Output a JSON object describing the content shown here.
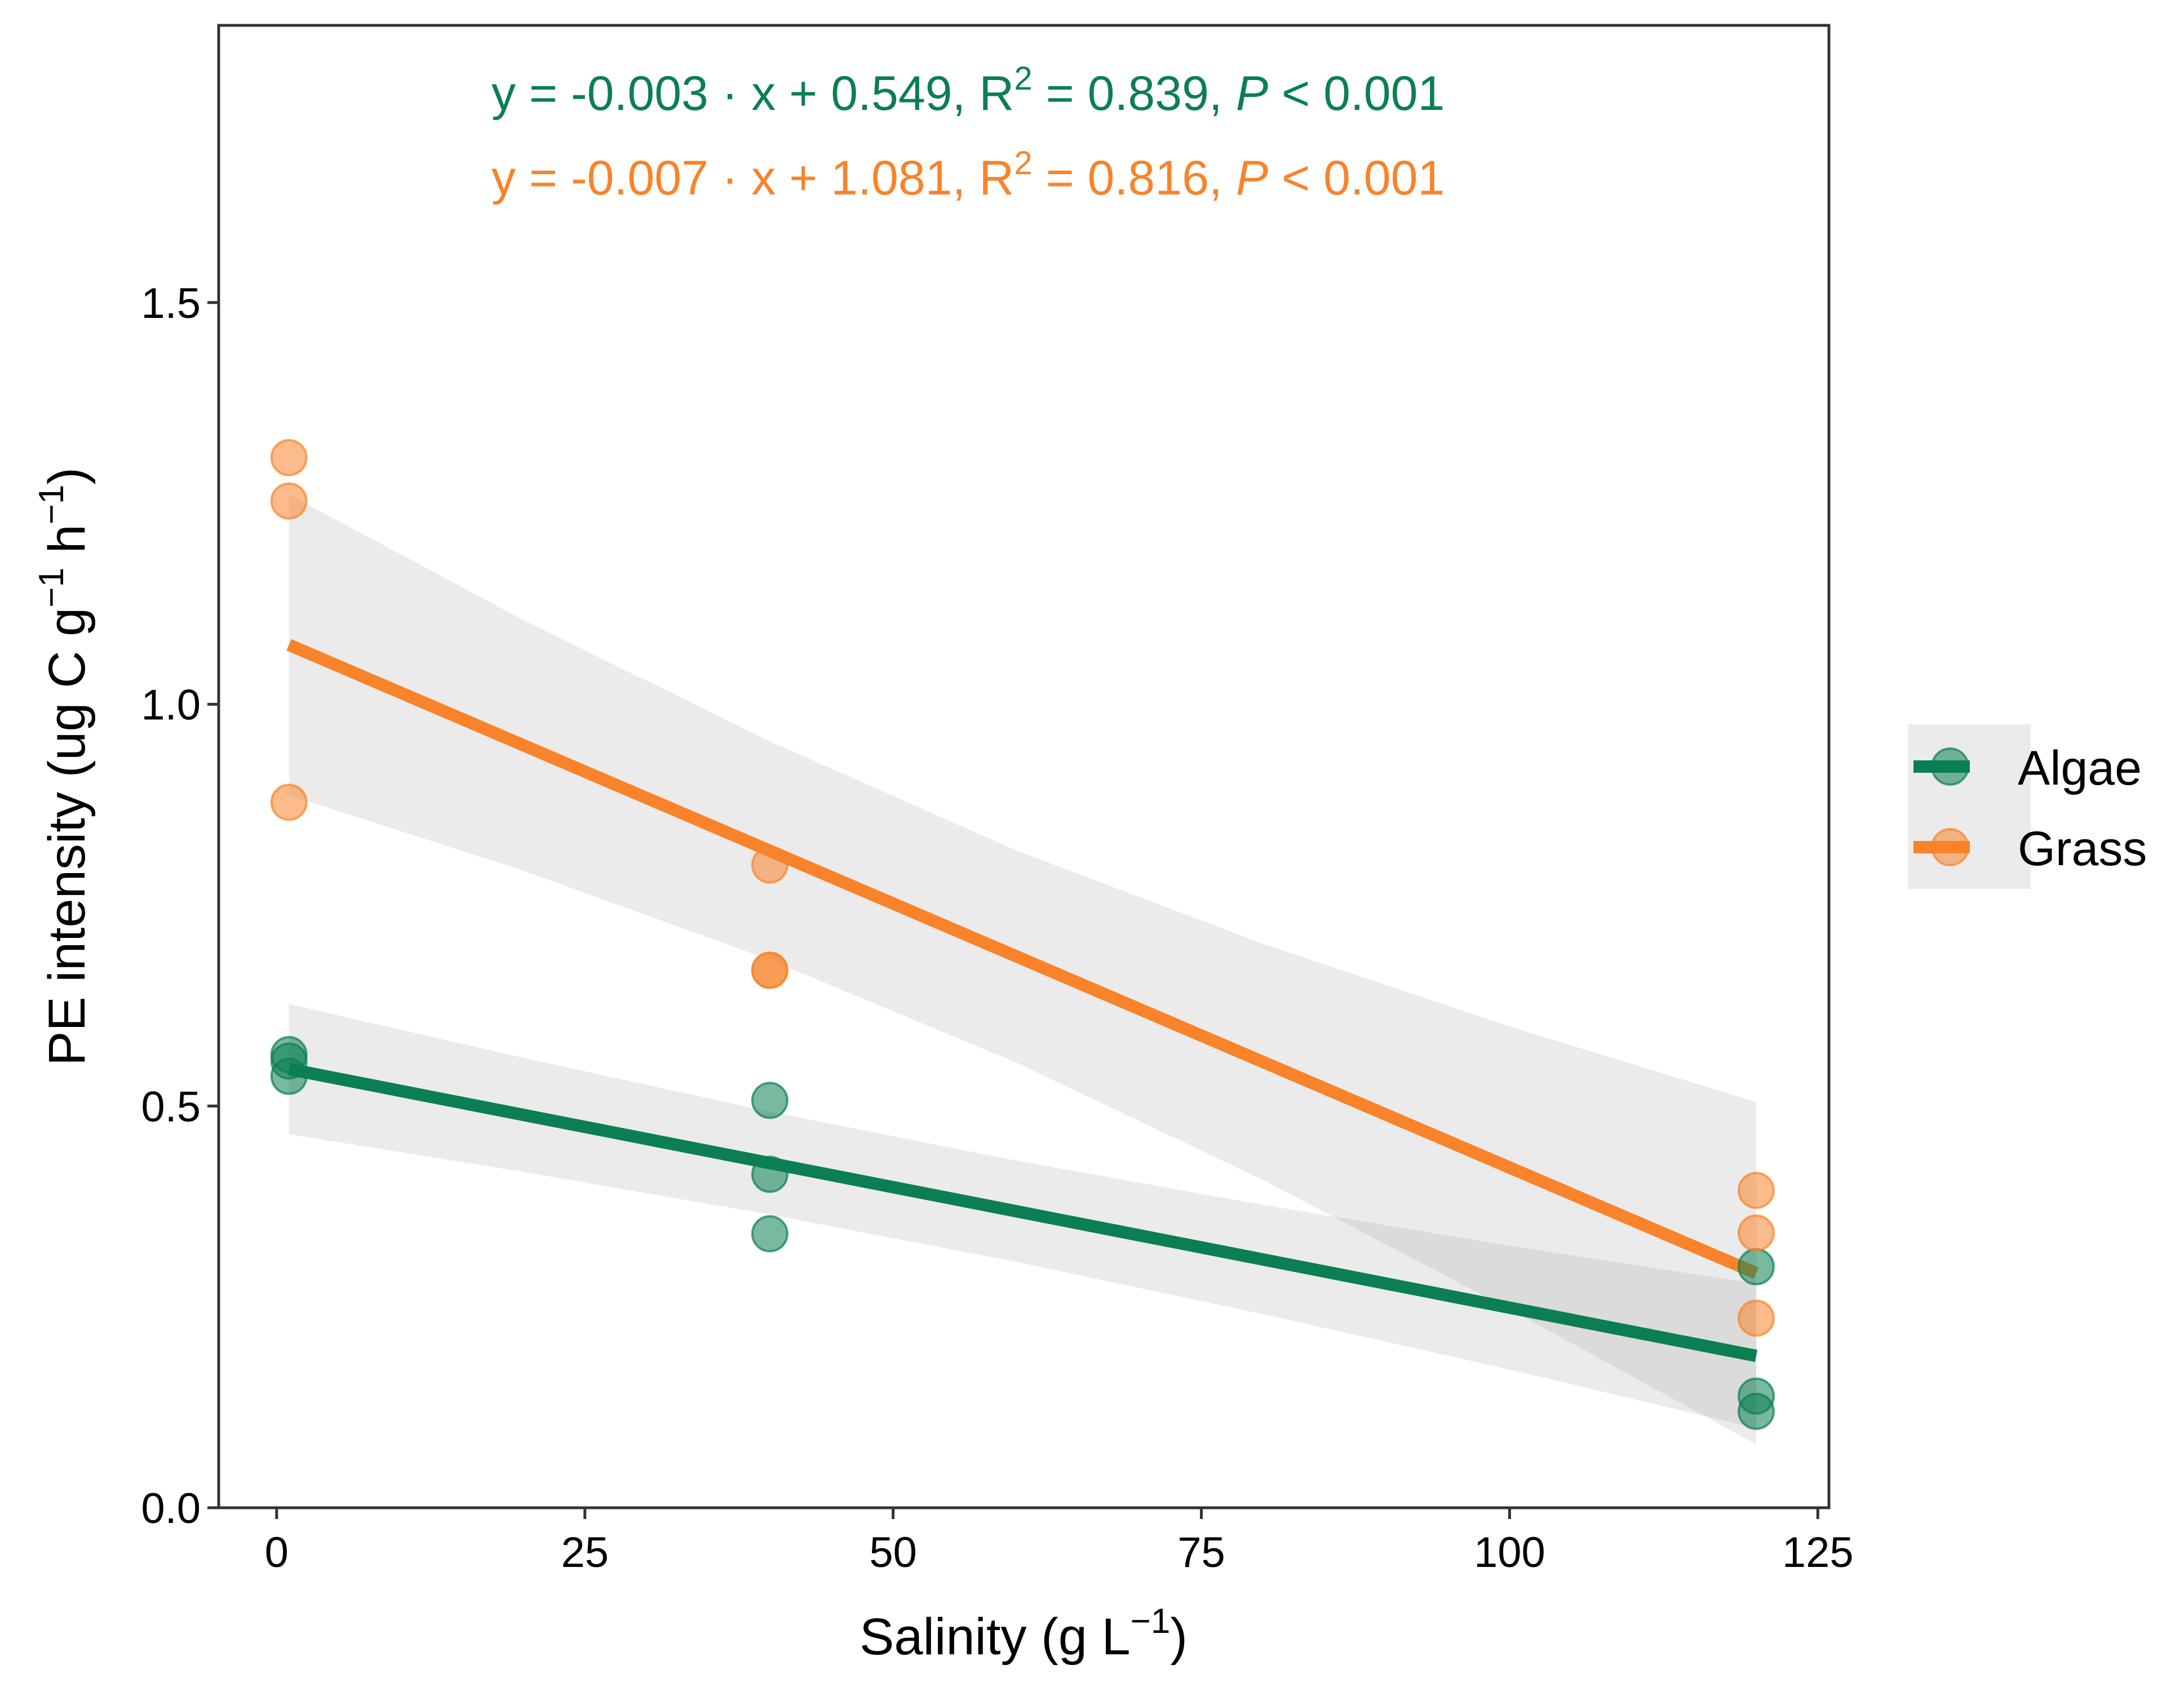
{
  "chart_data": {
    "type": "scatter",
    "xlabel": "Salinity (g L",
    "xlabel_sup": "−1",
    "xlabel_end": ")",
    "ylabel": "PE intensity (ug C g",
    "ylabel_sup1": "−1",
    "ylabel_mid": " h",
    "ylabel_sup2": "−1",
    "ylabel_end": ")",
    "xlim": [
      -4.7,
      125.9
    ],
    "ylim": [
      0,
      1.845
    ],
    "x_ticks": [
      0,
      25,
      50,
      75,
      100,
      125
    ],
    "x_tick_labels": [
      "0",
      "25",
      "50",
      "75",
      "100",
      "125"
    ],
    "y_ticks": [
      0,
      0.5,
      1.0,
      1.5
    ],
    "y_tick_labels": [
      "0.0",
      "0.5",
      "1.0",
      "1.5"
    ],
    "grid": false,
    "legend_position": "right",
    "band_x": [
      1,
      20,
      40,
      60,
      80,
      100,
      120
    ],
    "series": [
      {
        "name": "Algae",
        "color": "#0b7f52",
        "points": [
          [
            1,
            0.564
          ],
          [
            1,
            0.556
          ],
          [
            1,
            0.537
          ],
          [
            40,
            0.507
          ],
          [
            40,
            0.415
          ],
          [
            40,
            0.341
          ],
          [
            120,
            0.3
          ],
          [
            120,
            0.139
          ],
          [
            120,
            0.12
          ]
        ],
        "fit_line": [
          [
            1,
            0.546
          ],
          [
            120,
            0.189
          ]
        ],
        "band_lower": [
          0.465,
          0.418,
          0.365,
          0.306,
          0.241,
          0.172,
          0.099
        ],
        "band_upper": [
          0.627,
          0.56,
          0.493,
          0.432,
          0.377,
          0.326,
          0.279
        ],
        "equation": {
          "lhs": "y = -0.003 · x + 0.549,  R",
          "sup": "2",
          "rhs": " = 0.839,  ",
          "p": "P",
          "p_rest": " < 0.001"
        }
      },
      {
        "name": "Grass",
        "color": "#f8832a",
        "points": [
          [
            1,
            1.307
          ],
          [
            1,
            1.253
          ],
          [
            1,
            0.878
          ],
          [
            40,
            0.8
          ],
          [
            40,
            0.669
          ],
          [
            40,
            0.669
          ],
          [
            120,
            0.395
          ],
          [
            120,
            0.342
          ],
          [
            120,
            0.236
          ]
        ],
        "fit_line": [
          [
            1,
            1.074
          ],
          [
            120,
            0.292
          ]
        ],
        "band_lower": [
          0.887,
          0.793,
          0.682,
          0.554,
          0.408,
          0.247,
          0.079
        ],
        "band_upper": [
          1.261,
          1.105,
          0.954,
          0.818,
          0.702,
          0.599,
          0.505
        ],
        "equation": {
          "lhs": "y = -0.007 · x + 1.081,  R",
          "sup": "2",
          "rhs": " = 0.816,  ",
          "p": "P",
          "p_rest": " < 0.001"
        }
      }
    ]
  }
}
